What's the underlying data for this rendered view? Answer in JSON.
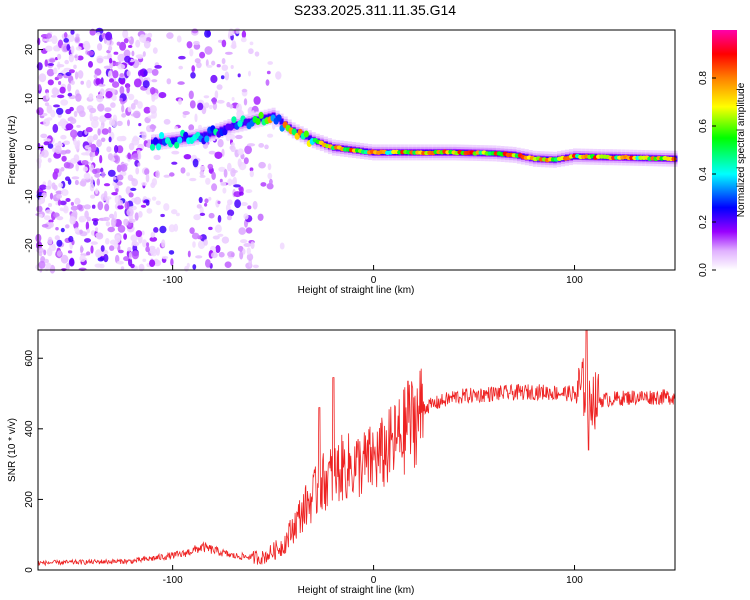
{
  "chart_data": [
    {
      "type": "heatmap",
      "title": "S233.2025.311.11.35.G14",
      "xlabel": "Height of straight line (km)",
      "ylabel": "Frequency (Hz)",
      "xlim": [
        -167,
        150
      ],
      "ylim": [
        -25,
        24
      ],
      "xticks": [
        -100,
        0,
        100
      ],
      "xtick_labels": [
        "-100",
        "0",
        "100"
      ],
      "yticks": [
        20,
        10,
        0,
        -10,
        -20
      ],
      "ytick_labels": [
        "20",
        "10",
        "0",
        "-10",
        "-20"
      ],
      "colorbar": {
        "label": "Normalized spectral amplitude",
        "ticks": [
          0.0,
          0.2,
          0.4,
          0.6,
          0.8
        ],
        "tick_labels": [
          "0.0",
          "0.2",
          "0.4",
          "0.6",
          "0.8"
        ],
        "range": [
          0,
          1
        ],
        "colors": [
          "#ffffff",
          "#e0b0ff",
          "#9900ff",
          "#0000ff",
          "#00ffff",
          "#00ff00",
          "#ffff00",
          "#ff8000",
          "#ff0000",
          "#ff00aa"
        ]
      },
      "ridge": {
        "x": [
          -110,
          -100,
          -90,
          -80,
          -70,
          -60,
          -50,
          -40,
          -30,
          -20,
          -10,
          0,
          10,
          20,
          40,
          60,
          70,
          80,
          90,
          100,
          120,
          150
        ],
        "freq": [
          1.0,
          1.5,
          2.0,
          3.0,
          4.5,
          5.5,
          6.5,
          3.5,
          1.5,
          0.0,
          -0.5,
          -1.0,
          -1.0,
          -1.0,
          -1.0,
          -1.2,
          -1.5,
          -2.3,
          -2.5,
          -1.8,
          -2.0,
          -2.3
        ]
      },
      "noise_region_x": [
        -167,
        -45
      ]
    },
    {
      "type": "line",
      "xlabel": "Height of straight line (km)",
      "ylabel": "SNR (10 * v/v)",
      "xlim": [
        -167,
        150
      ],
      "ylim": [
        0,
        680
      ],
      "xticks": [
        -100,
        0,
        100
      ],
      "xtick_labels": [
        "-100",
        "0",
        "100"
      ],
      "yticks": [
        0,
        200,
        400,
        600
      ],
      "ytick_labels": [
        "0",
        "200",
        "400",
        "600"
      ],
      "color": "#ee2222",
      "trend": {
        "x": [
          -167,
          -120,
          -95,
          -85,
          -70,
          -55,
          -45,
          -35,
          -25,
          -15,
          -5,
          5,
          15,
          25,
          40,
          60,
          80,
          100,
          106,
          110,
          130,
          150
        ],
        "y": [
          20,
          25,
          45,
          65,
          40,
          35,
          70,
          170,
          250,
          290,
          300,
          330,
          390,
          460,
          490,
          500,
          505,
          500,
          520,
          480,
          490,
          490
        ]
      },
      "spikes": [
        {
          "x": -20,
          "y": 545
        },
        {
          "x": -27,
          "y": 460
        },
        {
          "x": 17,
          "y": 535
        },
        {
          "x": 106,
          "y": 680
        },
        {
          "x": 107,
          "y": 340
        }
      ]
    }
  ]
}
